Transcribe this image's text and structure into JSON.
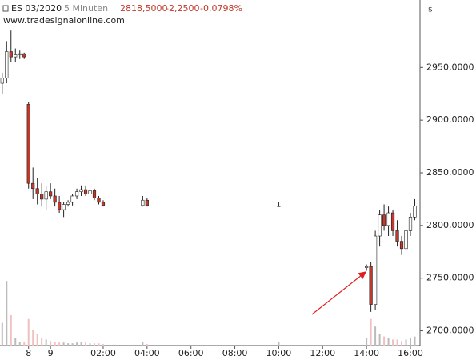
{
  "header": {
    "symbol": "ES 03/2020",
    "interval": "5 Minuten",
    "last": "2818,5000",
    "change": "-2,2500",
    "change_pct": "-0,0798%",
    "url": "www.tradesignalonline.com",
    "currency": "$"
  },
  "chart_data": {
    "type": "candlestick",
    "categories": [
      null,
      null,
      null,
      null,
      null,
      null,
      "8",
      null,
      null,
      null,
      null,
      "9",
      null,
      null,
      null,
      null,
      null,
      null,
      null,
      null,
      null,
      null,
      null,
      "02:00",
      null,
      null,
      null,
      null,
      null,
      null,
      null,
      null,
      null,
      "04:00",
      null,
      null,
      null,
      null,
      null,
      null,
      null,
      null,
      null,
      "06:00",
      null,
      null,
      null,
      null,
      null,
      null,
      null,
      null,
      null,
      "08:00",
      null,
      null,
      null,
      null,
      null,
      null,
      null,
      null,
      null,
      "10:00",
      null,
      null,
      null,
      null,
      null,
      null,
      null,
      null,
      null,
      "12:00",
      null,
      null,
      null,
      null,
      null,
      null,
      null,
      null,
      null,
      "14:00",
      null,
      null,
      null,
      null,
      null,
      null,
      null,
      null,
      null,
      "16:00",
      null
    ],
    "ohlc": [
      [
        2935,
        2945,
        2925,
        2940
      ],
      [
        2940,
        2975,
        2935,
        2965
      ],
      [
        2965,
        2985,
        2955,
        2960
      ],
      [
        2960,
        2968,
        2955,
        2962
      ],
      [
        2962,
        2966,
        2958,
        2963
      ],
      [
        2963,
        2964,
        2958,
        2960
      ],
      [
        2915,
        2917,
        2835,
        2840
      ],
      [
        2840,
        2855,
        2825,
        2835
      ],
      [
        2835,
        2845,
        2820,
        2830
      ],
      [
        2830,
        2840,
        2818,
        2825
      ],
      [
        2825,
        2838,
        2815,
        2832
      ],
      [
        2832,
        2840,
        2825,
        2828
      ],
      [
        2828,
        2835,
        2818,
        2822
      ],
      [
        2822,
        2828,
        2812,
        2815
      ],
      [
        2815,
        2822,
        2808,
        2820
      ],
      [
        2820,
        2824,
        2818,
        2822
      ],
      [
        2822,
        2830,
        2819,
        2828
      ],
      [
        2828,
        2835,
        2825,
        2832
      ],
      [
        2832,
        2838,
        2828,
        2834
      ],
      [
        2834,
        2838,
        2828,
        2830
      ],
      [
        2830,
        2836,
        2826,
        2833
      ],
      [
        2833,
        2835,
        2824,
        2826
      ],
      [
        2826,
        2828,
        2820,
        2822
      ],
      [
        2822,
        2824,
        2818,
        2819
      ],
      [
        2818.5,
        2818.5,
        2818.5,
        2818.5
      ],
      [
        2818.5,
        2818.5,
        2818.5,
        2818.5
      ],
      [
        2818.5,
        2818.5,
        2818.5,
        2818.5
      ],
      [
        2818.5,
        2818.5,
        2818.5,
        2818.5
      ],
      [
        2818.5,
        2818.5,
        2818.5,
        2818.5
      ],
      [
        2818.5,
        2818.5,
        2818.5,
        2818.5
      ],
      [
        2818.5,
        2818.5,
        2818.5,
        2818.5
      ],
      [
        2818.5,
        2818.5,
        2818.5,
        2818.5
      ],
      [
        2819,
        2828,
        2818,
        2824
      ],
      [
        2824,
        2826,
        2818,
        2819
      ],
      [
        2818.5,
        2818.5,
        2818.5,
        2818.5
      ],
      [
        2818.5,
        2818.5,
        2818.5,
        2818.5
      ],
      [
        2818.5,
        2818.5,
        2818.5,
        2818.5
      ],
      [
        2818.5,
        2818.5,
        2818.5,
        2818.5
      ],
      [
        2818.5,
        2818.5,
        2818.5,
        2818.5
      ],
      [
        2818.5,
        2818.5,
        2818.5,
        2818.5
      ],
      [
        2818.5,
        2818.5,
        2818.5,
        2818.5
      ],
      [
        2818.5,
        2818.5,
        2818.5,
        2818.5
      ],
      [
        2818.5,
        2818.5,
        2818.5,
        2818.5
      ],
      [
        2818.5,
        2818.5,
        2818.5,
        2818.5
      ],
      [
        2818.5,
        2818.5,
        2818.5,
        2818.5
      ],
      [
        2818.5,
        2818.5,
        2818.5,
        2818.5
      ],
      [
        2818.5,
        2818.5,
        2818.5,
        2818.5
      ],
      [
        2818.5,
        2818.5,
        2818.5,
        2818.5
      ],
      [
        2818.5,
        2818.5,
        2818.5,
        2818.5
      ],
      [
        2818.5,
        2818.5,
        2818.5,
        2818.5
      ],
      [
        2818.5,
        2818.5,
        2818.5,
        2818.5
      ],
      [
        2818.5,
        2818.5,
        2818.5,
        2818.5
      ],
      [
        2818.5,
        2818.5,
        2818.5,
        2818.5
      ],
      [
        2818.5,
        2818.5,
        2818.5,
        2818.5
      ],
      [
        2818.5,
        2818.5,
        2818.5,
        2818.5
      ],
      [
        2818.5,
        2818.5,
        2818.5,
        2818.5
      ],
      [
        2818.5,
        2818.5,
        2818.5,
        2818.5
      ],
      [
        2818.5,
        2818.5,
        2818.5,
        2818.5
      ],
      [
        2818.5,
        2818.5,
        2818.5,
        2818.5
      ],
      [
        2818.5,
        2818.5,
        2818.5,
        2818.5
      ],
      [
        2818.5,
        2818.5,
        2818.5,
        2818.5
      ],
      [
        2818.5,
        2818.5,
        2818.5,
        2818.5
      ],
      [
        2818.5,
        2818.5,
        2818.5,
        2818.5
      ],
      [
        2818.5,
        2822,
        2818.5,
        2818.5
      ],
      [
        2818.5,
        2818.5,
        2818.5,
        2818.5
      ],
      [
        2818.5,
        2818.5,
        2818.5,
        2818.5
      ],
      [
        2818.5,
        2818.5,
        2818.5,
        2818.5
      ],
      [
        2818.5,
        2818.5,
        2818.5,
        2818.5
      ],
      [
        2818.5,
        2818.5,
        2818.5,
        2818.5
      ],
      [
        2818.5,
        2818.5,
        2818.5,
        2818.5
      ],
      [
        2818.5,
        2818.5,
        2818.5,
        2818.5
      ],
      [
        2818.5,
        2818.5,
        2818.5,
        2818.5
      ],
      [
        2818.5,
        2818.5,
        2818.5,
        2818.5
      ],
      [
        2818.5,
        2818.5,
        2818.5,
        2818.5
      ],
      [
        2818.5,
        2818.5,
        2818.5,
        2818.5
      ],
      [
        2818.5,
        2818.5,
        2818.5,
        2818.5
      ],
      [
        2818.5,
        2818.5,
        2818.5,
        2818.5
      ],
      [
        2818.5,
        2818.5,
        2818.5,
        2818.5
      ],
      [
        2818.5,
        2818.5,
        2818.5,
        2818.5
      ],
      [
        2818.5,
        2818.5,
        2818.5,
        2818.5
      ],
      [
        2818.5,
        2818.5,
        2818.5,
        2818.5
      ],
      [
        2818.5,
        2818.5,
        2818.5,
        2818.5
      ],
      [
        2818.5,
        2818.5,
        2818.5,
        2818.5
      ],
      [
        2760,
        2763,
        2757,
        2761
      ],
      [
        2761,
        2765,
        2718,
        2725
      ],
      [
        2725,
        2795,
        2720,
        2790
      ],
      [
        2790,
        2815,
        2780,
        2810
      ],
      [
        2810,
        2820,
        2795,
        2800
      ],
      [
        2800,
        2818,
        2790,
        2812
      ],
      [
        2812,
        2815,
        2790,
        2795
      ],
      [
        2795,
        2805,
        2780,
        2785
      ],
      [
        2785,
        2790,
        2772,
        2778
      ],
      [
        2778,
        2800,
        2775,
        2795
      ],
      [
        2795,
        2812,
        2790,
        2808
      ],
      [
        2808,
        2825,
        2805,
        2818.5
      ]
    ],
    "volume": [
      30,
      85,
      40,
      10,
      5,
      5,
      35,
      20,
      15,
      10,
      8,
      6,
      5,
      4,
      4,
      3,
      3,
      4,
      5,
      4,
      3,
      3,
      3,
      2,
      0,
      0,
      0,
      0,
      0,
      0,
      0,
      0,
      5,
      2,
      0,
      0,
      0,
      0,
      0,
      0,
      0,
      0,
      0,
      0,
      0,
      0,
      0,
      0,
      0,
      0,
      0,
      0,
      0,
      0,
      0,
      0,
      0,
      0,
      0,
      0,
      0,
      0,
      0,
      5,
      0,
      0,
      0,
      0,
      0,
      0,
      0,
      0,
      0,
      0,
      0,
      0,
      0,
      0,
      0,
      0,
      0,
      0,
      0,
      10,
      35,
      25,
      15,
      12,
      10,
      8,
      8,
      6,
      8,
      10,
      12
    ],
    "ylim": [
      2686,
      3014
    ],
    "yticks": [
      {
        "value": 2700,
        "label": "2700,0000"
      },
      {
        "value": 2750,
        "label": "2750,0000"
      },
      {
        "value": 2800,
        "label": "2800,0000"
      },
      {
        "value": 2850,
        "label": "2850,0000"
      },
      {
        "value": 2900,
        "label": "2900,0000"
      },
      {
        "value": 2950,
        "label": "2950,0000"
      }
    ],
    "up_color": "#ffffff",
    "down_color": "#c0392b",
    "wick_color": "#222222"
  }
}
